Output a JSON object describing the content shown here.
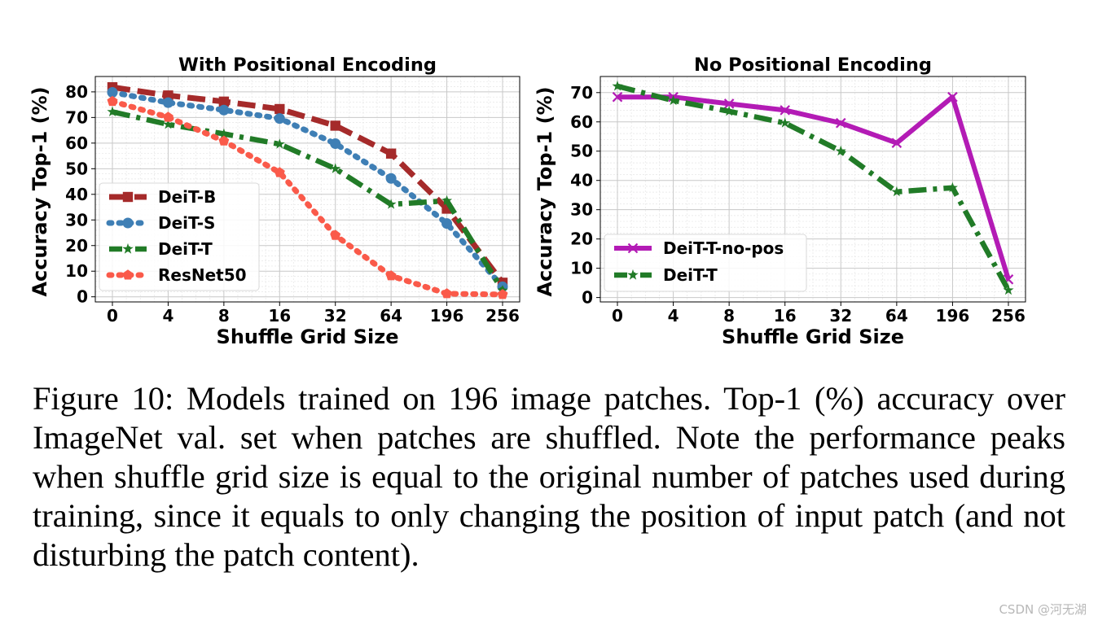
{
  "chart_data": [
    {
      "type": "line",
      "title": "With Positional Encoding",
      "xlabel": "Shuffle Grid Size",
      "ylabel": "Accuracy Top-1 (%)",
      "categories": [
        "0",
        "4",
        "8",
        "16",
        "32",
        "64",
        "196",
        "256"
      ],
      "yticks": [
        "0",
        "10",
        "20",
        "30",
        "40",
        "50",
        "60",
        "70",
        "80"
      ],
      "ylim": [
        -2,
        86
      ],
      "legend_position": "lower-left",
      "grid": true,
      "series": [
        {
          "name": "DeiT-B",
          "color": "#a52a2a",
          "marker": "square",
          "dash": "dashed",
          "values": [
            81.8,
            78.6,
            76.2,
            73.3,
            66.8,
            55.9,
            34.4,
            5.5
          ]
        },
        {
          "name": "DeiT-S",
          "color": "#3f7fb5",
          "marker": "circle",
          "dash": "dotted",
          "values": [
            79.8,
            75.8,
            72.9,
            69.6,
            59.8,
            46.2,
            28.6,
            3.9
          ]
        },
        {
          "name": "DeiT-T",
          "color": "#217b27",
          "marker": "star",
          "dash": "dashdot",
          "values": [
            72.2,
            67.3,
            63.6,
            59.6,
            50.0,
            36.1,
            37.5,
            2.5
          ]
        },
        {
          "name": "ResNet50",
          "color": "#fa5a4a",
          "marker": "pentagon",
          "dash": "dotted",
          "values": [
            76.3,
            70.1,
            60.8,
            48.5,
            24.0,
            8.2,
            1.2,
            0.9
          ]
        }
      ]
    },
    {
      "type": "line",
      "title": "No Positional Encoding",
      "xlabel": "Shuffle Grid Size",
      "ylabel": "Accuracy Top-1 (%)",
      "categories": [
        "0",
        "4",
        "8",
        "16",
        "32",
        "64",
        "196",
        "256"
      ],
      "yticks": [
        "0",
        "10",
        "20",
        "30",
        "40",
        "50",
        "60",
        "70"
      ],
      "ylim": [
        -1.5,
        75.5
      ],
      "legend_position": "lower-left",
      "grid": true,
      "series": [
        {
          "name": "DeiT-T-no-pos",
          "color": "#b31bb5",
          "marker": "x",
          "dash": "solid",
          "values": [
            68.5,
            68.5,
            66.2,
            64.0,
            59.6,
            52.8,
            68.5,
            6.2
          ]
        },
        {
          "name": "DeiT-T",
          "color": "#217b27",
          "marker": "star",
          "dash": "dashdot",
          "values": [
            72.2,
            67.3,
            63.6,
            59.6,
            50.0,
            36.1,
            37.5,
            2.5
          ]
        }
      ]
    }
  ],
  "caption": "Figure 10: Models trained on 196 image patches. Top-1 (%) accuracy over ImageNet val. set when patches are shuffled. Note the performance peaks when shuffle grid size is equal to the original number of patches used during training, since it equals to only changing the position of input patch (and not disturbing the patch content).",
  "watermark": "CSDN @河无湖"
}
